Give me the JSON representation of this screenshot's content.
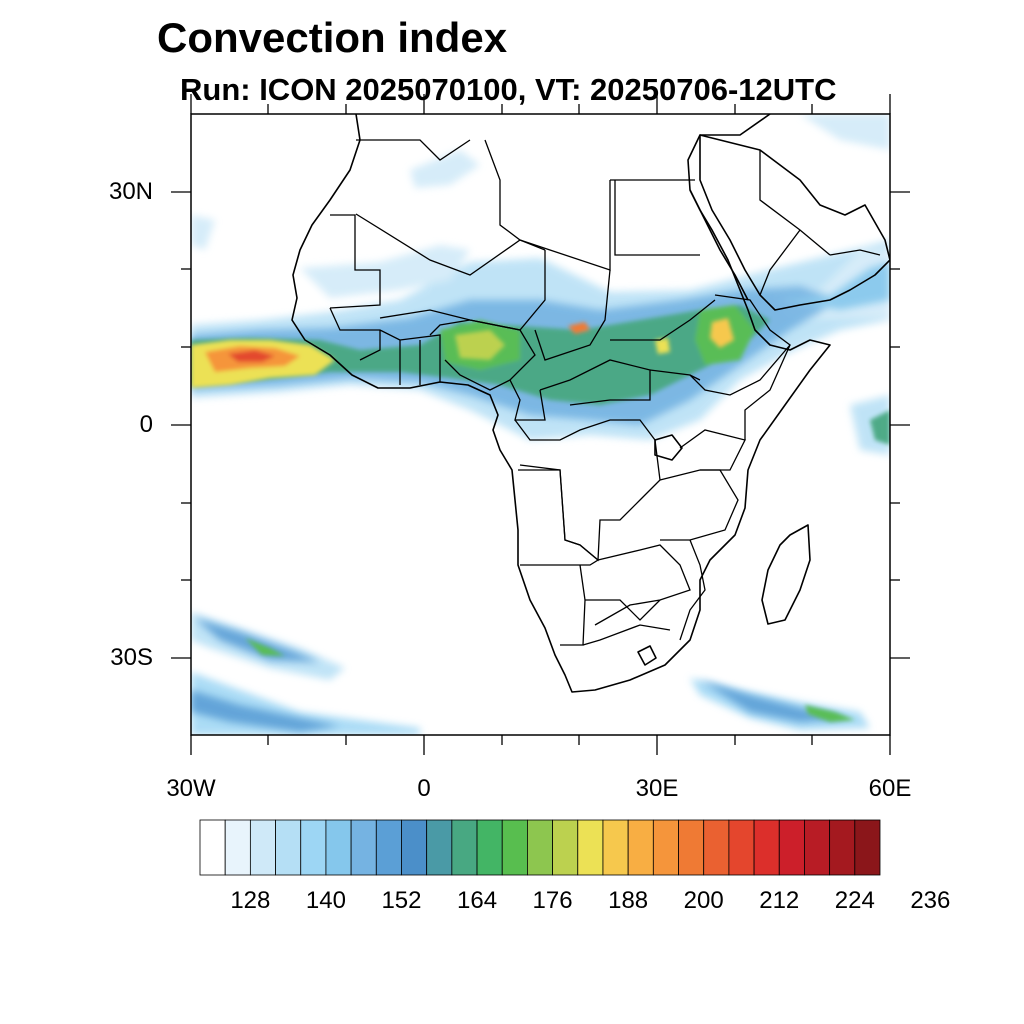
{
  "title": "Convection index",
  "subtitle": "Run: ICON 2025070100,  VT: 20250706-12UTC",
  "map": {
    "projection": "cylindrical equidistant",
    "lon_range": [
      -30,
      60
    ],
    "lat_range": [
      -40,
      40
    ],
    "lat_labels": [
      "30N",
      "0",
      "30S"
    ],
    "lon_labels": [
      "30W",
      "0",
      "30E",
      "60E"
    ],
    "coastline_color": "#000000"
  },
  "colorbar": {
    "colors": [
      "#ffffff",
      "#e8f4fc",
      "#cfe9f8",
      "#b5dff5",
      "#9dd6f4",
      "#85c7ec",
      "#75b3e2",
      "#5b9fd6",
      "#4b8fc9",
      "#4a9aa6",
      "#48a882",
      "#43b565",
      "#58be4f",
      "#8dc64f",
      "#bcd14f",
      "#ece155",
      "#f6c84d",
      "#f8ae43",
      "#f5953b",
      "#ef7a34",
      "#ea6131",
      "#e4462d",
      "#dc2f2b",
      "#cc1f2a",
      "#b81c25",
      "#a4191f",
      "#8b161a"
    ],
    "labels": [
      "128",
      "140",
      "152",
      "164",
      "176",
      "188",
      "200",
      "212",
      "224",
      "236"
    ]
  }
}
